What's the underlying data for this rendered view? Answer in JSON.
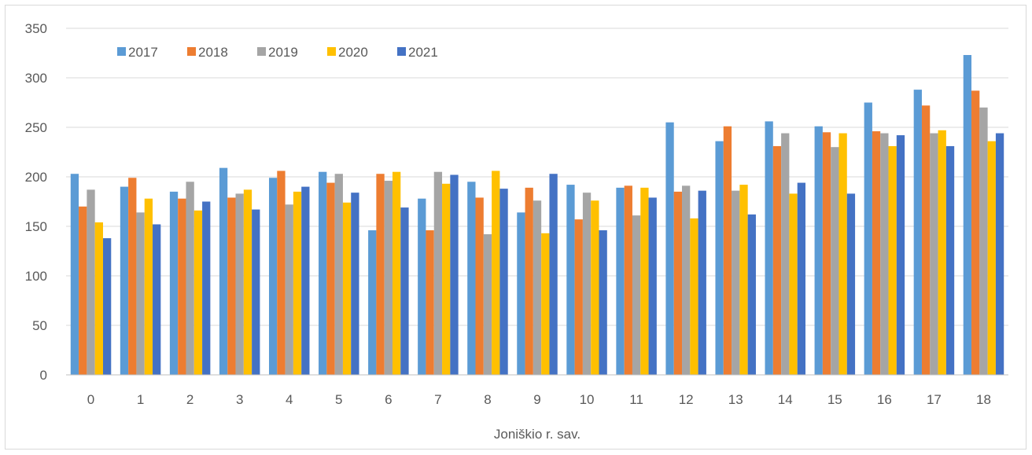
{
  "chart_data": {
    "type": "bar",
    "title": "",
    "xlabel": "Joniškio r. sav.",
    "ylabel": "",
    "ylim": [
      0,
      350
    ],
    "yticks": [
      0,
      50,
      100,
      150,
      200,
      250,
      300,
      350
    ],
    "grid": true,
    "legend_position": "top-left",
    "categories": [
      "0",
      "1",
      "2",
      "3",
      "4",
      "5",
      "6",
      "7",
      "8",
      "9",
      "10",
      "11",
      "12",
      "13",
      "14",
      "15",
      "16",
      "17",
      "18"
    ],
    "series": [
      {
        "name": "2017",
        "color": "#5B9BD5",
        "values": [
          203,
          190,
          185,
          209,
          199,
          205,
          146,
          178,
          195,
          164,
          192,
          189,
          255,
          236,
          256,
          251,
          275,
          288,
          323
        ]
      },
      {
        "name": "2018",
        "color": "#ED7D31",
        "values": [
          170,
          199,
          178,
          179,
          206,
          194,
          203,
          146,
          179,
          189,
          157,
          191,
          185,
          251,
          231,
          245,
          246,
          272,
          287
        ]
      },
      {
        "name": "2019",
        "color": "#A5A5A5",
        "values": [
          187,
          164,
          195,
          183,
          172,
          203,
          196,
          205,
          142,
          176,
          184,
          161,
          191,
          186,
          244,
          230,
          244,
          244,
          270
        ]
      },
      {
        "name": "2020",
        "color": "#FFC000",
        "values": [
          154,
          178,
          166,
          187,
          185,
          174,
          205,
          193,
          206,
          143,
          176,
          189,
          158,
          192,
          183,
          244,
          231,
          247,
          236
        ]
      },
      {
        "name": "2021",
        "color": "#4472C4",
        "values": [
          138,
          152,
          175,
          167,
          190,
          184,
          169,
          202,
          188,
          203,
          146,
          179,
          186,
          162,
          194,
          183,
          242,
          231,
          244
        ]
      }
    ]
  }
}
